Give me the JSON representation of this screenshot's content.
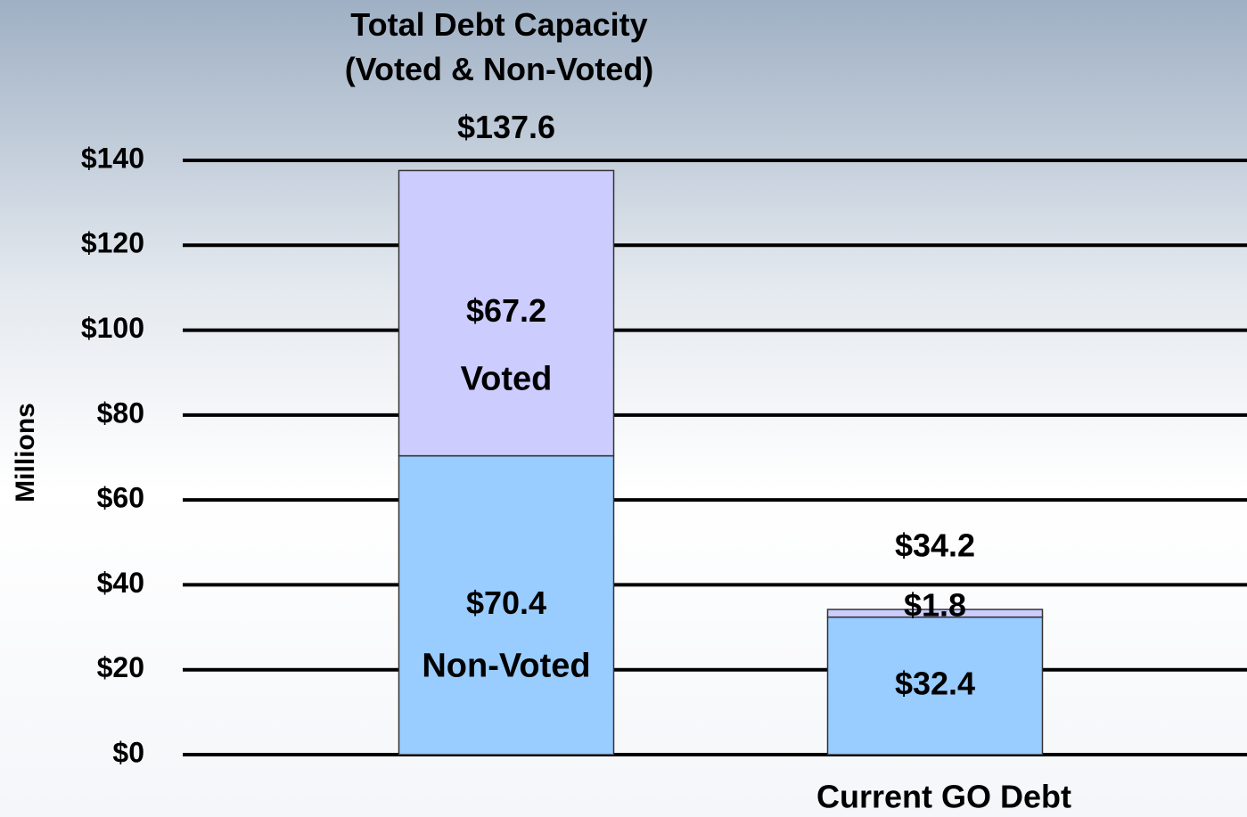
{
  "chart_data": {
    "type": "stacked_bar",
    "y_label": "Millions",
    "categories": [
      "Total Debt Capacity\n(Voted & Non-Voted)",
      "Current GO Debt"
    ],
    "series": [
      {
        "name": "Non-Voted",
        "color": "#99ccff",
        "values": [
          70.4,
          32.4
        ],
        "value_labels": [
          "$70.4",
          "$32.4"
        ]
      },
      {
        "name": "Voted",
        "color": "#ccccff",
        "values": [
          67.2,
          1.8
        ],
        "value_labels": [
          "$67.2",
          "$1.8"
        ]
      }
    ],
    "totals": [
      137.6,
      34.2
    ],
    "total_labels": [
      "$137.6",
      "$34.2"
    ],
    "ylim": [
      0,
      140
    ],
    "yticks": [
      {
        "value": 0,
        "label": "$0"
      },
      {
        "value": 20,
        "label": "$20"
      },
      {
        "value": 40,
        "label": "$40"
      },
      {
        "value": 60,
        "label": "$60"
      },
      {
        "value": 80,
        "label": "$80"
      },
      {
        "value": 100,
        "label": "$100"
      },
      {
        "value": 120,
        "label": "$120"
      },
      {
        "value": 140,
        "label": "$140"
      }
    ],
    "grid": true
  }
}
